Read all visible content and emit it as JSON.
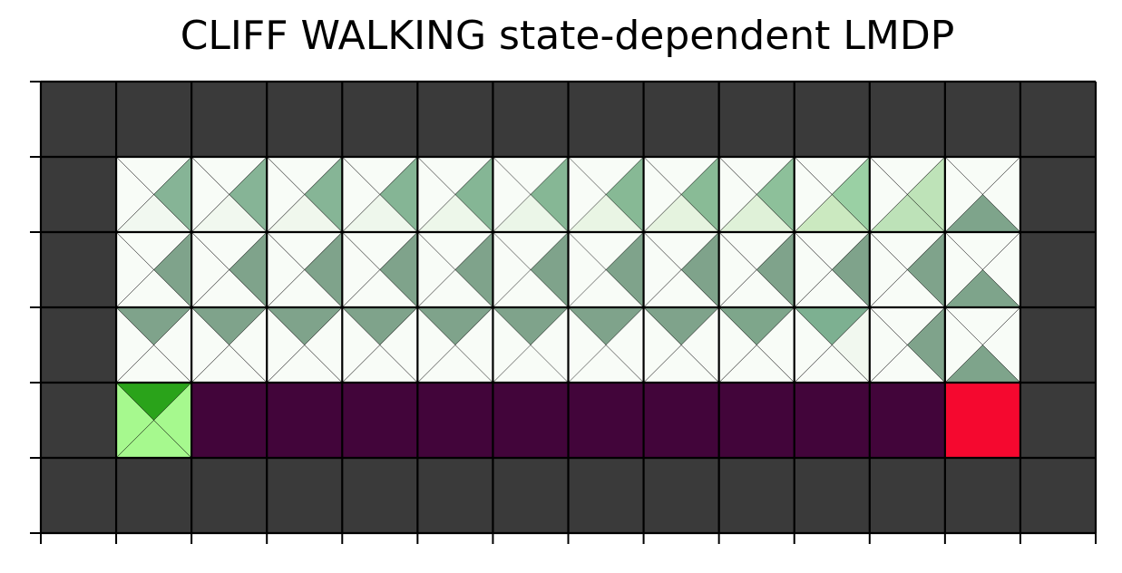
{
  "title": "CLIFF WALKING state-dependent LMDP",
  "grid": {
    "rows": 6,
    "cols": 14
  },
  "colors": {
    "wall": "#3a3a3a",
    "cliff": "#42053a",
    "goal": "#f5082f",
    "start_fill": "#a6f98e",
    "start_up_triangle": "#2aa31a",
    "free_base": "#f8fcf7"
  },
  "cells": {
    "start": {
      "row": 4,
      "col": 1
    },
    "goal": {
      "row": 4,
      "col": 12
    },
    "cliff": {
      "row": 4,
      "cols": [
        2,
        3,
        4,
        5,
        6,
        7,
        8,
        9,
        10,
        11
      ]
    },
    "walls": "border"
  },
  "policy": [
    {
      "row": 1,
      "col": 1,
      "up": "#f8fcf7",
      "right": "#86b496",
      "down": "#f1f8f0",
      "left": "#f8fcf7"
    },
    {
      "row": 1,
      "col": 2,
      "up": "#f8fcf7",
      "right": "#86b496",
      "down": "#f1f8ef",
      "left": "#f8fcf7"
    },
    {
      "row": 1,
      "col": 3,
      "up": "#f8fcf7",
      "right": "#86b596",
      "down": "#f0f7ed",
      "left": "#f8fcf7"
    },
    {
      "row": 1,
      "col": 4,
      "up": "#f8fcf7",
      "right": "#85b595",
      "down": "#eef7ec",
      "left": "#f8fcf7"
    },
    {
      "row": 1,
      "col": 5,
      "up": "#f8fcf7",
      "right": "#85b695",
      "down": "#edf7ea",
      "left": "#f8fcf7"
    },
    {
      "row": 1,
      "col": 6,
      "up": "#f8fcf7",
      "right": "#86b795",
      "down": "#ebf6e8",
      "left": "#f8fcf7"
    },
    {
      "row": 1,
      "col": 7,
      "up": "#f8fcf7",
      "right": "#87b995",
      "down": "#e9f5e4",
      "left": "#f8fcf7"
    },
    {
      "row": 1,
      "col": 8,
      "up": "#f8fcf7",
      "right": "#89bb96",
      "down": "#e5f3df",
      "left": "#f8fcf7"
    },
    {
      "row": 1,
      "col": 9,
      "up": "#f8fcf7",
      "right": "#8dc09a",
      "down": "#dff1d8",
      "left": "#f8fcf7"
    },
    {
      "row": 1,
      "col": 10,
      "up": "#f8fcf7",
      "right": "#9ad0a4",
      "down": "#cbe9c0",
      "left": "#f8fcf7"
    },
    {
      "row": 1,
      "col": 11,
      "up": "#f8fcf7",
      "right": "#bee3b8",
      "down": "#bde2b8",
      "left": "#f8fcf7"
    },
    {
      "row": 1,
      "col": 12,
      "up": "#f8fcf7",
      "right": "#f8fcf7",
      "down": "#7ea48b",
      "left": "#f8fcf7"
    },
    {
      "row": 2,
      "col": 1,
      "up": "#f8fcf7",
      "right": "#7fa38b",
      "down": "#f8fcf7",
      "left": "#f8fcf7"
    },
    {
      "row": 2,
      "col": 2,
      "up": "#f8fcf7",
      "right": "#7fa38b",
      "down": "#f8fcf7",
      "left": "#f8fcf7"
    },
    {
      "row": 2,
      "col": 3,
      "up": "#f8fcf7",
      "right": "#7fa38b",
      "down": "#f8fcf7",
      "left": "#f8fcf7"
    },
    {
      "row": 2,
      "col": 4,
      "up": "#f8fcf7",
      "right": "#7fa38b",
      "down": "#f8fcf7",
      "left": "#f8fcf7"
    },
    {
      "row": 2,
      "col": 5,
      "up": "#f8fcf7",
      "right": "#7fa38b",
      "down": "#f8fcf7",
      "left": "#f8fcf7"
    },
    {
      "row": 2,
      "col": 6,
      "up": "#f8fcf7",
      "right": "#7fa38b",
      "down": "#f8fcf7",
      "left": "#f8fcf7"
    },
    {
      "row": 2,
      "col": 7,
      "up": "#f8fcf7",
      "right": "#7fa38b",
      "down": "#f8fcf7",
      "left": "#f8fcf7"
    },
    {
      "row": 2,
      "col": 8,
      "up": "#f8fcf7",
      "right": "#7fa38b",
      "down": "#f8fcf7",
      "left": "#f8fcf7"
    },
    {
      "row": 2,
      "col": 9,
      "up": "#f8fcf7",
      "right": "#7fa38b",
      "down": "#f8fcf7",
      "left": "#f8fcf7"
    },
    {
      "row": 2,
      "col": 10,
      "up": "#f8fcf7",
      "right": "#7fa38b",
      "down": "#f8fcf7",
      "left": "#f8fcf7"
    },
    {
      "row": 2,
      "col": 11,
      "up": "#f8fcf7",
      "right": "#7fa38b",
      "down": "#f8fcf7",
      "left": "#f8fcf7"
    },
    {
      "row": 2,
      "col": 12,
      "up": "#f8fcf7",
      "right": "#f8fcf7",
      "down": "#7ea48b",
      "left": "#f8fcf7"
    },
    {
      "row": 3,
      "col": 1,
      "up": "#7fa38b",
      "right": "#f8fcf7",
      "down": "#f8fcf7",
      "left": "#f8fcf7"
    },
    {
      "row": 3,
      "col": 2,
      "up": "#7fa38b",
      "right": "#f8fcf7",
      "down": "#f8fcf7",
      "left": "#f8fcf7"
    },
    {
      "row": 3,
      "col": 3,
      "up": "#7fa38b",
      "right": "#f8fcf7",
      "down": "#f8fcf7",
      "left": "#f8fcf7"
    },
    {
      "row": 3,
      "col": 4,
      "up": "#7fa38b",
      "right": "#f8fcf7",
      "down": "#f8fcf7",
      "left": "#f8fcf7"
    },
    {
      "row": 3,
      "col": 5,
      "up": "#7fa38b",
      "right": "#f8fcf7",
      "down": "#f8fcf7",
      "left": "#f8fcf7"
    },
    {
      "row": 3,
      "col": 6,
      "up": "#7fa38b",
      "right": "#f8fcf7",
      "down": "#f8fcf7",
      "left": "#f8fcf7"
    },
    {
      "row": 3,
      "col": 7,
      "up": "#7fa38b",
      "right": "#f8fcf7",
      "down": "#f8fcf7",
      "left": "#f8fcf7"
    },
    {
      "row": 3,
      "col": 8,
      "up": "#7fa38b",
      "right": "#f8fcf7",
      "down": "#f8fcf7",
      "left": "#f8fcf7"
    },
    {
      "row": 3,
      "col": 9,
      "up": "#7ea68b",
      "right": "#f8fcf7",
      "down": "#f8fcf7",
      "left": "#f8fcf7"
    },
    {
      "row": 3,
      "col": 10,
      "up": "#7db091",
      "right": "#f1f8ef",
      "down": "#f8fcf7",
      "left": "#f8fcf7"
    },
    {
      "row": 3,
      "col": 11,
      "up": "#f8fcf7",
      "right": "#7fa38b",
      "down": "#f8fcf7",
      "left": "#f8fcf7"
    },
    {
      "row": 3,
      "col": 12,
      "up": "#f8fcf7",
      "right": "#f8fcf7",
      "down": "#7ea48b",
      "left": "#f8fcf7"
    }
  ]
}
